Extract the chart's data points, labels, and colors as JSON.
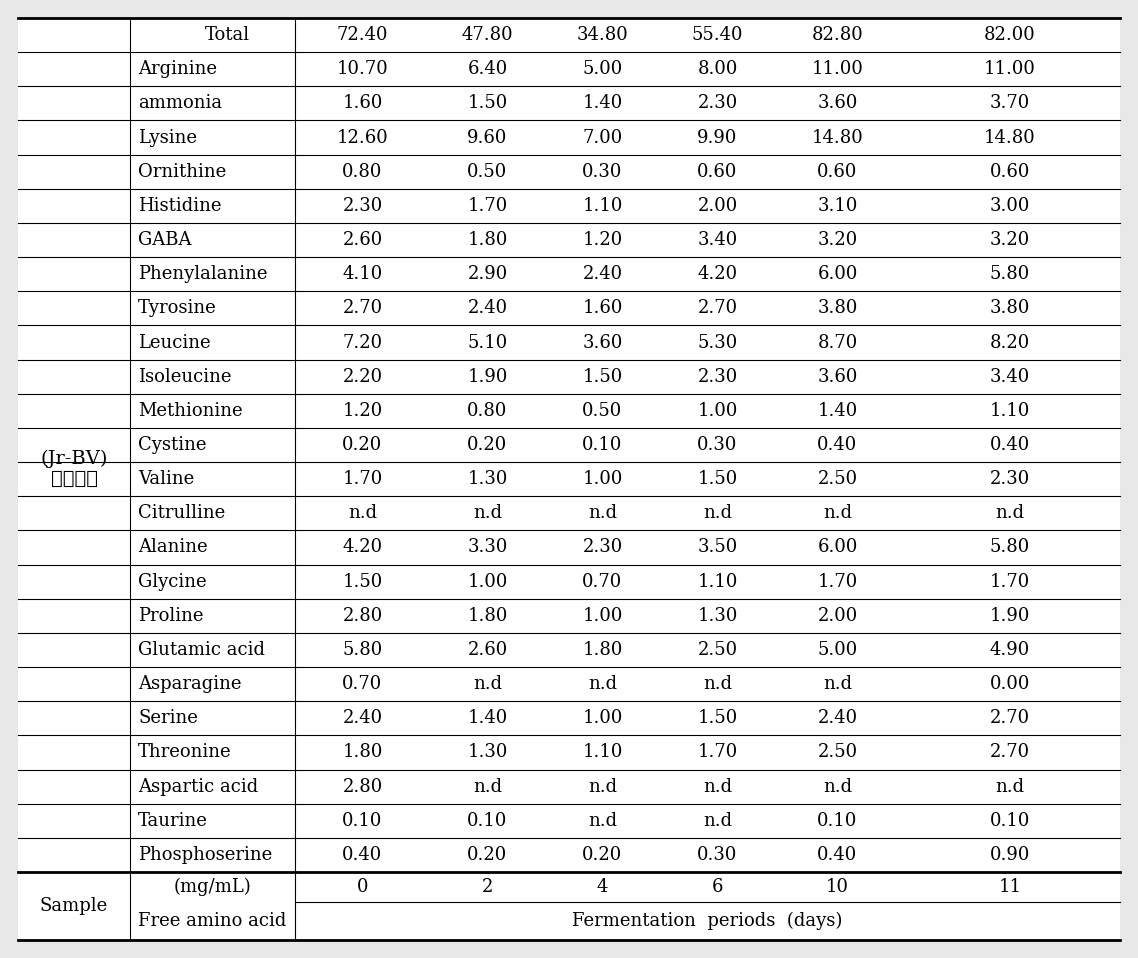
{
  "header_row1": [
    "Sample",
    "Free amino acid\n(mg/mL)",
    "Fermentation periods (days)"
  ],
  "header_row2": [
    "",
    "",
    "0",
    "2",
    "4",
    "6",
    "10",
    "11"
  ],
  "sample_label": "보리식초\n(Jr-BV)",
  "rows": [
    [
      "Phosphoserine",
      "0.40",
      "0.20",
      "0.20",
      "0.30",
      "0.40",
      "0.90"
    ],
    [
      "Taurine",
      "0.10",
      "0.10",
      "n.d",
      "n.d",
      "0.10",
      "0.10"
    ],
    [
      "Aspartic acid",
      "2.80",
      "n.d",
      "n.d",
      "n.d",
      "n.d",
      "n.d"
    ],
    [
      "Threonine",
      "1.80",
      "1.30",
      "1.10",
      "1.70",
      "2.50",
      "2.70"
    ],
    [
      "Serine",
      "2.40",
      "1.40",
      "1.00",
      "1.50",
      "2.40",
      "2.70"
    ],
    [
      "Asparagine",
      "0.70",
      "n.d",
      "n.d",
      "n.d",
      "n.d",
      "0.00"
    ],
    [
      "Glutamic acid",
      "5.80",
      "2.60",
      "1.80",
      "2.50",
      "5.00",
      "4.90"
    ],
    [
      "Proline",
      "2.80",
      "1.80",
      "1.00",
      "1.30",
      "2.00",
      "1.90"
    ],
    [
      "Glycine",
      "1.50",
      "1.00",
      "0.70",
      "1.10",
      "1.70",
      "1.70"
    ],
    [
      "Alanine",
      "4.20",
      "3.30",
      "2.30",
      "3.50",
      "6.00",
      "5.80"
    ],
    [
      "Citrulline",
      "n.d",
      "n.d",
      "n.d",
      "n.d",
      "n.d",
      "n.d"
    ],
    [
      "Valine",
      "1.70",
      "1.30",
      "1.00",
      "1.50",
      "2.50",
      "2.30"
    ],
    [
      "Cystine",
      "0.20",
      "0.20",
      "0.10",
      "0.30",
      "0.40",
      "0.40"
    ],
    [
      "Methionine",
      "1.20",
      "0.80",
      "0.50",
      "1.00",
      "1.40",
      "1.10"
    ],
    [
      "Isoleucine",
      "2.20",
      "1.90",
      "1.50",
      "2.30",
      "3.60",
      "3.40"
    ],
    [
      "Leucine",
      "7.20",
      "5.10",
      "3.60",
      "5.30",
      "8.70",
      "8.20"
    ],
    [
      "Tyrosine",
      "2.70",
      "2.40",
      "1.60",
      "2.70",
      "3.80",
      "3.80"
    ],
    [
      "Phenylalanine",
      "4.10",
      "2.90",
      "2.40",
      "4.20",
      "6.00",
      "5.80"
    ],
    [
      "GABA",
      "2.60",
      "1.80",
      "1.20",
      "3.40",
      "3.20",
      "3.20"
    ],
    [
      "Histidine",
      "2.30",
      "1.70",
      "1.10",
      "2.00",
      "3.10",
      "3.00"
    ],
    [
      "Ornithine",
      "0.80",
      "0.50",
      "0.30",
      "0.60",
      "0.60",
      "0.60"
    ],
    [
      "Lysine",
      "12.60",
      "9.60",
      "7.00",
      "9.90",
      "14.80",
      "14.80"
    ],
    [
      "ammonia",
      "1.60",
      "1.50",
      "1.40",
      "2.30",
      "3.60",
      "3.70"
    ],
    [
      "Arginine",
      "10.70",
      "6.40",
      "5.00",
      "8.00",
      "11.00",
      "11.00"
    ]
  ],
  "total_row": [
    "Total",
    "72.40",
    "47.80",
    "34.80",
    "55.40",
    "82.80",
    "82.00"
  ],
  "bg_color": "#e8e8e8",
  "table_bg": "#ffffff",
  "font_size": 13,
  "header_font_size": 13
}
